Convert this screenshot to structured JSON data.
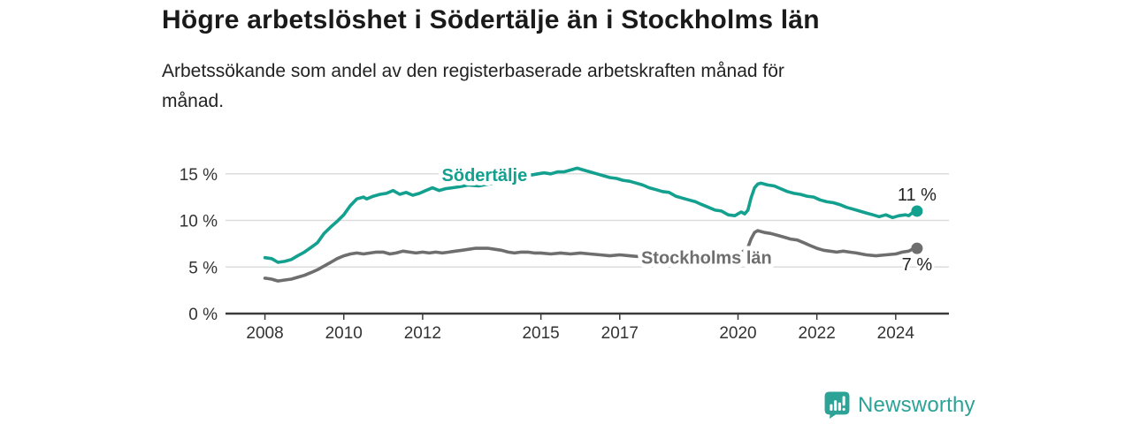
{
  "header": {
    "title": "Högre arbetslöshet i Södertälje än i Stockholms län",
    "subtitle": "Arbetssökande som andel av den registerbaserade arbetskraften månad för\nmånad."
  },
  "footer": {
    "brand": "Newsworthy",
    "brand_color": "#2da296"
  },
  "colors": {
    "title_text": "#1a1a1a",
    "axis": "#3a3a3a",
    "grid": "#dcdcdc",
    "tick_text": "#333333",
    "end_label_text": "#222222",
    "background": "#ffffff"
  },
  "chart_data": {
    "type": "line",
    "unit": "%",
    "grid": "horizontal",
    "x_range": [
      2007,
      2025.35
    ],
    "ylim": [
      0,
      16.5
    ],
    "x_ticks": [
      {
        "v": 2008,
        "label": "2008"
      },
      {
        "v": 2010,
        "label": "2010"
      },
      {
        "v": 2012,
        "label": "2012"
      },
      {
        "v": 2015,
        "label": "2015"
      },
      {
        "v": 2017,
        "label": "2017"
      },
      {
        "v": 2020,
        "label": "2020"
      },
      {
        "v": 2022,
        "label": "2022"
      },
      {
        "v": 2024,
        "label": "2024"
      }
    ],
    "y_ticks": [
      {
        "v": 0,
        "label": "0 %"
      },
      {
        "v": 5,
        "label": "5 %"
      },
      {
        "v": 10,
        "label": "10 %"
      },
      {
        "v": 15,
        "label": "15 %"
      }
    ],
    "series": [
      {
        "name": "Södertälje",
        "color": "#13a08f",
        "label_at": {
          "x": 2013.57,
          "y": 14.9
        },
        "end_label": {
          "text": "11 %",
          "position": "above"
        },
        "end_value": 11,
        "points": [
          [
            2008.0,
            6.0
          ],
          [
            2008.17,
            5.9
          ],
          [
            2008.33,
            5.5
          ],
          [
            2008.5,
            5.6
          ],
          [
            2008.67,
            5.8
          ],
          [
            2008.83,
            6.2
          ],
          [
            2009.0,
            6.6
          ],
          [
            2009.17,
            7.1
          ],
          [
            2009.33,
            7.6
          ],
          [
            2009.5,
            8.6
          ],
          [
            2009.67,
            9.3
          ],
          [
            2009.83,
            9.9
          ],
          [
            2010.0,
            10.6
          ],
          [
            2010.17,
            11.6
          ],
          [
            2010.33,
            12.3
          ],
          [
            2010.5,
            12.5
          ],
          [
            2010.58,
            12.3
          ],
          [
            2010.75,
            12.6
          ],
          [
            2010.92,
            12.8
          ],
          [
            2011.08,
            12.9
          ],
          [
            2011.25,
            13.2
          ],
          [
            2011.42,
            12.8
          ],
          [
            2011.58,
            13.0
          ],
          [
            2011.75,
            12.7
          ],
          [
            2011.92,
            12.9
          ],
          [
            2012.08,
            13.2
          ],
          [
            2012.25,
            13.5
          ],
          [
            2012.42,
            13.2
          ],
          [
            2012.58,
            13.4
          ],
          [
            2012.75,
            13.5
          ],
          [
            2012.92,
            13.6
          ],
          [
            2013.17,
            13.8
          ],
          [
            2013.42,
            13.7
          ],
          [
            2013.67,
            13.9
          ],
          [
            2013.92,
            14.1
          ],
          [
            2014.17,
            14.4
          ],
          [
            2014.42,
            14.6
          ],
          [
            2014.67,
            14.8
          ],
          [
            2014.92,
            15.0
          ],
          [
            2015.08,
            15.1
          ],
          [
            2015.25,
            15.0
          ],
          [
            2015.42,
            15.2
          ],
          [
            2015.58,
            15.2
          ],
          [
            2015.75,
            15.4
          ],
          [
            2015.92,
            15.6
          ],
          [
            2016.08,
            15.4
          ],
          [
            2016.25,
            15.2
          ],
          [
            2016.42,
            15.0
          ],
          [
            2016.58,
            14.8
          ],
          [
            2016.75,
            14.6
          ],
          [
            2016.92,
            14.5
          ],
          [
            2017.08,
            14.3
          ],
          [
            2017.25,
            14.2
          ],
          [
            2017.42,
            14.0
          ],
          [
            2017.58,
            13.8
          ],
          [
            2017.75,
            13.5
          ],
          [
            2017.92,
            13.3
          ],
          [
            2018.08,
            13.1
          ],
          [
            2018.25,
            13.0
          ],
          [
            2018.42,
            12.6
          ],
          [
            2018.58,
            12.4
          ],
          [
            2018.75,
            12.2
          ],
          [
            2018.92,
            12.0
          ],
          [
            2019.08,
            11.7
          ],
          [
            2019.25,
            11.4
          ],
          [
            2019.42,
            11.1
          ],
          [
            2019.58,
            11.0
          ],
          [
            2019.75,
            10.6
          ],
          [
            2019.92,
            10.5
          ],
          [
            2020.0,
            10.7
          ],
          [
            2020.08,
            10.9
          ],
          [
            2020.17,
            10.7
          ],
          [
            2020.25,
            11.1
          ],
          [
            2020.33,
            12.4
          ],
          [
            2020.42,
            13.5
          ],
          [
            2020.5,
            13.9
          ],
          [
            2020.58,
            14.0
          ],
          [
            2020.75,
            13.8
          ],
          [
            2020.92,
            13.7
          ],
          [
            2021.08,
            13.4
          ],
          [
            2021.25,
            13.1
          ],
          [
            2021.42,
            12.9
          ],
          [
            2021.58,
            12.8
          ],
          [
            2021.75,
            12.6
          ],
          [
            2021.92,
            12.5
          ],
          [
            2022.08,
            12.2
          ],
          [
            2022.25,
            12.0
          ],
          [
            2022.42,
            11.9
          ],
          [
            2022.58,
            11.7
          ],
          [
            2022.75,
            11.4
          ],
          [
            2022.92,
            11.2
          ],
          [
            2023.08,
            11.0
          ],
          [
            2023.25,
            10.8
          ],
          [
            2023.42,
            10.6
          ],
          [
            2023.58,
            10.4
          ],
          [
            2023.75,
            10.6
          ],
          [
            2023.92,
            10.3
          ],
          [
            2024.08,
            10.5
          ],
          [
            2024.25,
            10.6
          ],
          [
            2024.33,
            10.5
          ],
          [
            2024.42,
            10.8
          ],
          [
            2024.54,
            11.0
          ]
        ]
      },
      {
        "name": "Stockholms län",
        "color": "#6e6e6e",
        "label_at": {
          "x": 2019.2,
          "y": 6.0
        },
        "end_label": {
          "text": "7 %",
          "position": "below"
        },
        "end_value": 7,
        "points": [
          [
            2008.0,
            3.8
          ],
          [
            2008.17,
            3.7
          ],
          [
            2008.33,
            3.5
          ],
          [
            2008.5,
            3.6
          ],
          [
            2008.67,
            3.7
          ],
          [
            2008.83,
            3.9
          ],
          [
            2009.0,
            4.1
          ],
          [
            2009.17,
            4.4
          ],
          [
            2009.33,
            4.7
          ],
          [
            2009.5,
            5.1
          ],
          [
            2009.67,
            5.5
          ],
          [
            2009.83,
            5.9
          ],
          [
            2010.0,
            6.2
          ],
          [
            2010.17,
            6.4
          ],
          [
            2010.33,
            6.5
          ],
          [
            2010.5,
            6.4
          ],
          [
            2010.67,
            6.5
          ],
          [
            2010.83,
            6.6
          ],
          [
            2011.0,
            6.6
          ],
          [
            2011.17,
            6.4
          ],
          [
            2011.33,
            6.5
          ],
          [
            2011.5,
            6.7
          ],
          [
            2011.67,
            6.6
          ],
          [
            2011.83,
            6.5
          ],
          [
            2012.0,
            6.6
          ],
          [
            2012.17,
            6.5
          ],
          [
            2012.33,
            6.6
          ],
          [
            2012.5,
            6.5
          ],
          [
            2012.67,
            6.6
          ],
          [
            2012.83,
            6.7
          ],
          [
            2013.0,
            6.8
          ],
          [
            2013.17,
            6.9
          ],
          [
            2013.33,
            7.0
          ],
          [
            2013.5,
            7.0
          ],
          [
            2013.67,
            7.0
          ],
          [
            2013.83,
            6.9
          ],
          [
            2014.0,
            6.8
          ],
          [
            2014.17,
            6.6
          ],
          [
            2014.33,
            6.5
          ],
          [
            2014.5,
            6.6
          ],
          [
            2014.67,
            6.6
          ],
          [
            2014.83,
            6.5
          ],
          [
            2015.0,
            6.5
          ],
          [
            2015.25,
            6.4
          ],
          [
            2015.5,
            6.5
          ],
          [
            2015.75,
            6.4
          ],
          [
            2016.0,
            6.5
          ],
          [
            2016.25,
            6.4
          ],
          [
            2016.5,
            6.3
          ],
          [
            2016.75,
            6.2
          ],
          [
            2017.0,
            6.3
          ],
          [
            2017.25,
            6.2
          ],
          [
            2017.5,
            6.1
          ],
          [
            2017.75,
            6.1
          ],
          [
            2018.0,
            6.1
          ],
          [
            2018.33,
            6.0
          ],
          [
            2018.67,
            6.0
          ],
          [
            2019.0,
            6.0
          ],
          [
            2019.33,
            6.0
          ],
          [
            2019.67,
            6.1
          ],
          [
            2019.92,
            6.2
          ],
          [
            2020.08,
            6.5
          ],
          [
            2020.25,
            7.1
          ],
          [
            2020.33,
            8.0
          ],
          [
            2020.42,
            8.7
          ],
          [
            2020.5,
            8.9
          ],
          [
            2020.67,
            8.7
          ],
          [
            2020.83,
            8.6
          ],
          [
            2021.0,
            8.4
          ],
          [
            2021.17,
            8.2
          ],
          [
            2021.33,
            8.0
          ],
          [
            2021.5,
            7.9
          ],
          [
            2021.67,
            7.6
          ],
          [
            2021.83,
            7.3
          ],
          [
            2022.0,
            7.0
          ],
          [
            2022.17,
            6.8
          ],
          [
            2022.33,
            6.7
          ],
          [
            2022.5,
            6.6
          ],
          [
            2022.67,
            6.7
          ],
          [
            2022.83,
            6.6
          ],
          [
            2023.0,
            6.5
          ],
          [
            2023.25,
            6.3
          ],
          [
            2023.5,
            6.2
          ],
          [
            2023.75,
            6.3
          ],
          [
            2024.0,
            6.4
          ],
          [
            2024.17,
            6.6
          ],
          [
            2024.33,
            6.7
          ],
          [
            2024.42,
            6.9
          ],
          [
            2024.54,
            7.0
          ]
        ]
      }
    ]
  }
}
